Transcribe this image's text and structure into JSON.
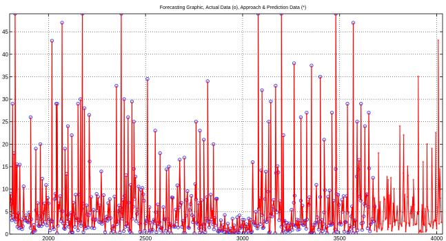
{
  "chart_data": {
    "type": "line",
    "title": "Forecasting Graphic, Actual Data (o), Approach & Prediction Data (*)",
    "xlabel": "",
    "ylabel": "",
    "xlim": [
      1800,
      4030
    ],
    "ylim": [
      0,
      49
    ],
    "x_ticks": [
      2000,
      2500,
      3000,
      3500,
      4000
    ],
    "y_ticks": [
      0,
      5,
      10,
      15,
      20,
      25,
      30,
      35,
      40,
      45
    ],
    "grid": true,
    "colors": {
      "actual": "#3333ff",
      "approach": "#ff0000",
      "axes": "#000000",
      "grid": "#000000"
    },
    "series": [
      {
        "role": "actual",
        "marker": "o",
        "x_start": 1800,
        "x_end": 3680,
        "spikes": [
          [
            1815,
            29
          ],
          [
            1822,
            18
          ],
          [
            1828,
            49
          ],
          [
            1838,
            15.5
          ],
          [
            1908,
            26
          ],
          [
            1935,
            19
          ],
          [
            1958,
            20
          ],
          [
            2018,
            43
          ],
          [
            2040,
            29
          ],
          [
            2045,
            29
          ],
          [
            2070,
            47
          ],
          [
            2085,
            19
          ],
          [
            2100,
            24
          ],
          [
            2120,
            22
          ],
          [
            2152,
            29
          ],
          [
            2165,
            30
          ],
          [
            2175,
            49
          ],
          [
            2185,
            28
          ],
          [
            2210,
            26.5
          ],
          [
            2350,
            33
          ],
          [
            2375,
            49
          ],
          [
            2390,
            30
          ],
          [
            2410,
            26
          ],
          [
            2430,
            29.5
          ],
          [
            2440,
            25
          ],
          [
            2510,
            34.5
          ],
          [
            2550,
            23
          ],
          [
            2575,
            18
          ],
          [
            2620,
            15
          ],
          [
            2700,
            17
          ],
          [
            2760,
            25
          ],
          [
            2780,
            23
          ],
          [
            2800,
            21
          ],
          [
            2820,
            34
          ],
          [
            2850,
            20
          ],
          [
            3080,
            49
          ],
          [
            3100,
            32
          ],
          [
            3135,
            25
          ],
          [
            3145,
            29.5
          ],
          [
            3170,
            33
          ],
          [
            3200,
            49
          ],
          [
            3210,
            22
          ],
          [
            3265,
            38
          ],
          [
            3300,
            26
          ],
          [
            3330,
            27
          ],
          [
            3355,
            37.5
          ],
          [
            3400,
            35
          ],
          [
            3420,
            21
          ],
          [
            3460,
            27
          ],
          [
            3480,
            49
          ],
          [
            3540,
            29
          ],
          [
            3570,
            47
          ],
          [
            3590,
            25
          ],
          [
            3610,
            29
          ],
          [
            3630,
            24
          ],
          [
            3650,
            27
          ]
        ]
      },
      {
        "role": "approach-prediction",
        "marker": "*",
        "x_start": 1800,
        "x_end": 4025,
        "spikes": [
          [
            3680,
            8
          ],
          [
            3700,
            18
          ],
          [
            3750,
            12
          ],
          [
            3780,
            10
          ],
          [
            3810,
            24
          ],
          [
            3830,
            22
          ],
          [
            3850,
            15
          ],
          [
            3880,
            12
          ],
          [
            3905,
            35
          ],
          [
            3930,
            16
          ],
          [
            3950,
            20
          ],
          [
            3975,
            19
          ],
          [
            3995,
            22.5
          ],
          [
            4008,
            43
          ]
        ]
      }
    ]
  }
}
